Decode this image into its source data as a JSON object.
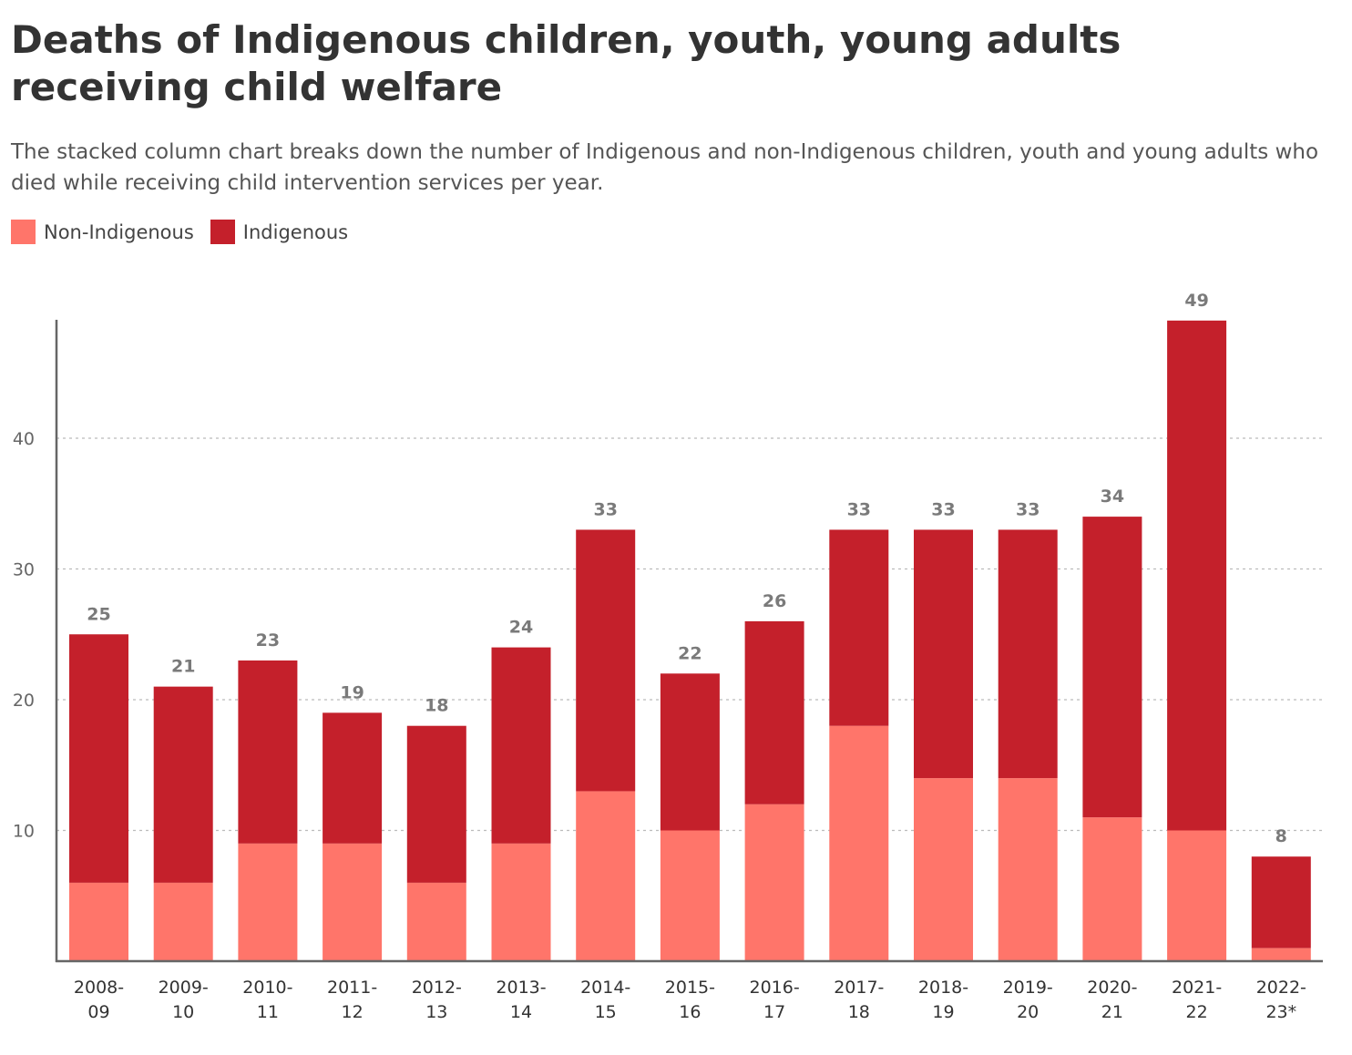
{
  "title": "Deaths of Indigenous children, youth, young adults receiving child welfare",
  "subtitle": "The stacked column chart breaks down the number of Indigenous and non-Indigenous children, youth and young adults who died while receiving child intervention services per year.",
  "legend": {
    "items": [
      {
        "label": "Non-Indigenous",
        "color": "#ff756a"
      },
      {
        "label": "Indigenous",
        "color": "#c4202b"
      }
    ]
  },
  "chart_data": {
    "type": "bar",
    "stacked": true,
    "title": "Deaths of Indigenous children, youth, young adults receiving child welfare",
    "subtitle": "The stacked column chart breaks down the number of Indigenous and non-Indigenous children, youth and young adults who died while receiving child intervention services per year.",
    "categories": [
      [
        "2008-",
        "09"
      ],
      [
        "2009-",
        "10"
      ],
      [
        "2010-",
        "11"
      ],
      [
        "2011-",
        "12"
      ],
      [
        "2012-",
        "13"
      ],
      [
        "2013-",
        "14"
      ],
      [
        "2014-",
        "15"
      ],
      [
        "2015-",
        "16"
      ],
      [
        "2016-",
        "17"
      ],
      [
        "2017-",
        "18"
      ],
      [
        "2018-",
        "19"
      ],
      [
        "2019-",
        "20"
      ],
      [
        "2020-",
        "21"
      ],
      [
        "2021-",
        "22"
      ],
      [
        "2022-",
        "23*"
      ]
    ],
    "series": [
      {
        "name": "Non-Indigenous",
        "color": "#ff756a",
        "values": [
          6,
          6,
          9,
          9,
          6,
          9,
          13,
          10,
          12,
          18,
          14,
          14,
          11,
          10,
          1
        ]
      },
      {
        "name": "Indigenous",
        "color": "#c4202b",
        "values": [
          19,
          15,
          14,
          10,
          12,
          15,
          20,
          12,
          14,
          15,
          19,
          19,
          23,
          39,
          7
        ]
      }
    ],
    "totals": [
      25,
      21,
      23,
      19,
      18,
      24,
      33,
      22,
      26,
      33,
      33,
      33,
      34,
      49,
      8
    ],
    "yticks": [
      10,
      20,
      30,
      40
    ],
    "ylim": [
      0,
      49
    ],
    "xlabel": "",
    "ylabel": "",
    "grid": true,
    "legend_position": "top-left"
  }
}
